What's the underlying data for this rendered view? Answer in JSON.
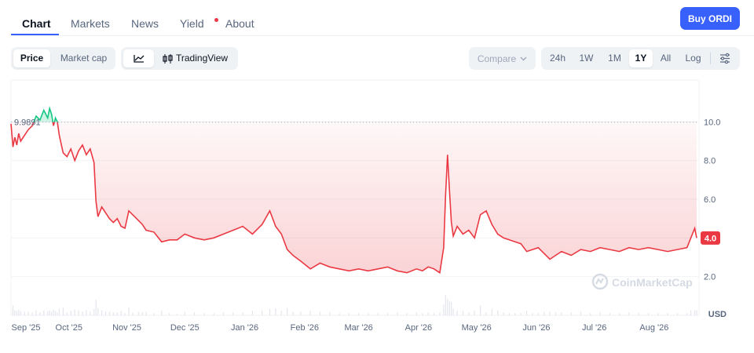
{
  "tabs": [
    {
      "label": "Chart",
      "active": true
    },
    {
      "label": "Markets"
    },
    {
      "label": "News"
    },
    {
      "label": "Yield",
      "badge": true
    },
    {
      "label": "About"
    }
  ],
  "buy_button": "Buy ORDI",
  "toggles": {
    "metric": [
      "Price",
      "Market cap"
    ],
    "metric_selected": "Price",
    "style": {
      "line_icon": "line-chart-icon",
      "tradingview_icon": "candlestick-icon",
      "tradingview_label": "TradingView"
    }
  },
  "compare_label": "Compare",
  "ranges": [
    "24h",
    "1W",
    "1M",
    "1Y",
    "All",
    "Log"
  ],
  "range_selected": "1Y",
  "settings_icon": "sliders-icon",
  "watermark": "CoinMarketCap",
  "chart_data": {
    "type": "area",
    "title": "",
    "ylabel": "USD",
    "y_ticks": [
      "10.0",
      "8.0",
      "6.0",
      "4.0",
      "2.0"
    ],
    "ylim": [
      0,
      12
    ],
    "reference_line": {
      "value": 9.9891,
      "label": "9.9891"
    },
    "current_price": {
      "value": 4.0,
      "label": "4.0"
    },
    "x_tick_labels": [
      "Sep '25",
      "Oct '25",
      "Nov '25",
      "Dec '25",
      "Jan '26",
      "Feb '26",
      "Mar '26",
      "Apr '26",
      "May '26",
      "Jun '26",
      "Jul '26",
      "Aug '26"
    ],
    "x_tick_days": [
      0,
      30,
      60,
      90,
      121,
      152,
      180,
      211,
      241,
      272,
      302,
      333
    ],
    "series": [
      {
        "color_above": "#16c784",
        "color_below": "#ea3943",
        "x_days": [
          0,
          1,
          2,
          3,
          4,
          5,
          7,
          9,
          11,
          13,
          15,
          17,
          19,
          20,
          21,
          22,
          23,
          24,
          25,
          27,
          29,
          31,
          33,
          35,
          37,
          39,
          41,
          43,
          44,
          45,
          47,
          49,
          51,
          53,
          55,
          57,
          59,
          61,
          63,
          66,
          68,
          70,
          74,
          78,
          82,
          86,
          90,
          95,
          100,
          105,
          110,
          115,
          120,
          125,
          130,
          134,
          137,
          140,
          143,
          146,
          150,
          155,
          160,
          165,
          170,
          175,
          180,
          185,
          190,
          195,
          200,
          205,
          210,
          213,
          216,
          219,
          222,
          224,
          225,
          226,
          227,
          228,
          229,
          231,
          234,
          237,
          240,
          243,
          246,
          249,
          252,
          255,
          258,
          261,
          264,
          267,
          270,
          273,
          276,
          279,
          282,
          285,
          290,
          295,
          300,
          305,
          310,
          315,
          320,
          325,
          330,
          335,
          340,
          345,
          350,
          352,
          354,
          355
        ],
        "y": [
          9.9,
          8.7,
          9.2,
          8.8,
          9.4,
          9.0,
          9.3,
          9.6,
          9.8,
          10.3,
          10.1,
          10.6,
          10.2,
          10.7,
          10.4,
          9.8,
          10.2,
          10.0,
          9.3,
          8.4,
          8.2,
          8.6,
          8.0,
          8.5,
          8.8,
          8.3,
          8.6,
          7.9,
          5.9,
          5.1,
          5.6,
          5.3,
          5.0,
          4.8,
          5.0,
          4.6,
          4.5,
          5.4,
          5.2,
          4.9,
          4.7,
          4.4,
          4.3,
          3.8,
          3.9,
          3.9,
          4.2,
          4.0,
          3.9,
          4.0,
          4.2,
          4.4,
          4.6,
          4.2,
          4.7,
          5.4,
          4.6,
          4.2,
          3.4,
          3.1,
          2.8,
          2.4,
          2.7,
          2.5,
          2.4,
          2.3,
          2.4,
          2.3,
          2.4,
          2.5,
          2.3,
          2.2,
          2.4,
          2.3,
          2.5,
          2.4,
          2.2,
          3.5,
          6.2,
          8.3,
          6.5,
          4.8,
          4.1,
          4.6,
          4.2,
          4.4,
          4.0,
          5.2,
          5.4,
          4.7,
          4.2,
          4.0,
          3.9,
          3.8,
          3.7,
          3.3,
          3.4,
          3.5,
          3.2,
          2.9,
          3.1,
          3.3,
          3.1,
          3.4,
          3.3,
          3.5,
          3.4,
          3.3,
          3.5,
          3.4,
          3.5,
          3.4,
          3.3,
          3.4,
          3.5,
          4.0,
          4.5,
          4.0
        ]
      }
    ]
  }
}
